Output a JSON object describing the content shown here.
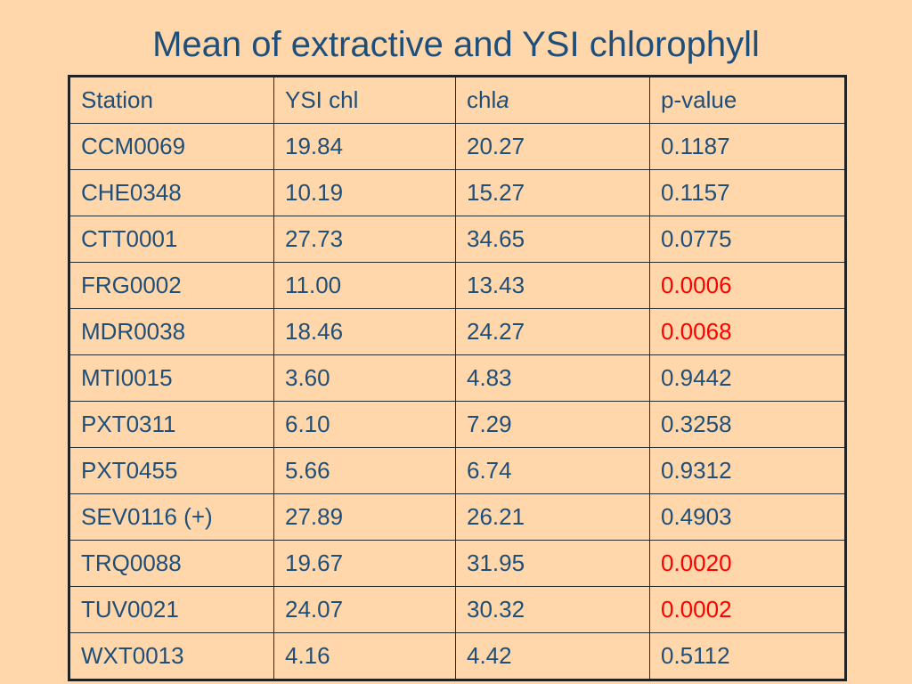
{
  "title": "Mean of extractive and YSI chlorophyll",
  "table": {
    "headers": {
      "station": "Station",
      "ysi": "YSI chl",
      "chl_prefix": "chl",
      "chl_italic": "a",
      "pvalue": "p-value"
    },
    "rows": [
      {
        "station": "CCM0069",
        "ysi": "19.84",
        "chla": "20.27",
        "p": "0.1187",
        "significant": false
      },
      {
        "station": "CHE0348",
        "ysi": "10.19",
        "chla": "15.27",
        "p": "0.1157",
        "significant": false
      },
      {
        "station": "CTT0001",
        "ysi": "27.73",
        "chla": "34.65",
        "p": "0.0775",
        "significant": false
      },
      {
        "station": "FRG0002",
        "ysi": "11.00",
        "chla": "13.43",
        "p": "0.0006",
        "significant": true
      },
      {
        "station": "MDR0038",
        "ysi": "18.46",
        "chla": "24.27",
        "p": "0.0068",
        "significant": true
      },
      {
        "station": "MTI0015",
        "ysi": "3.60",
        "chla": "4.83",
        "p": "0.9442",
        "significant": false
      },
      {
        "station": "PXT0311",
        "ysi": "6.10",
        "chla": "7.29",
        "p": "0.3258",
        "significant": false
      },
      {
        "station": "PXT0455",
        "ysi": "5.66",
        "chla": "6.74",
        "p": "0.9312",
        "significant": false
      },
      {
        "station": "SEV0116 (+)",
        "ysi": "27.89",
        "chla": "26.21",
        "p": "0.4903",
        "significant": false
      },
      {
        "station": "TRQ0088",
        "ysi": "19.67",
        "chla": "31.95",
        "p": "0.0020",
        "significant": true
      },
      {
        "station": "TUV0021",
        "ysi": "24.07",
        "chla": "30.32",
        "p": "0.0002",
        "significant": true
      },
      {
        "station": "WXT0013",
        "ysi": "4.16",
        "chla": "4.42",
        "p": "0.5112",
        "significant": false
      }
    ]
  },
  "colors": {
    "background": "#FFD7AA",
    "text": "#1F4E79",
    "significant": "#FF0000"
  }
}
